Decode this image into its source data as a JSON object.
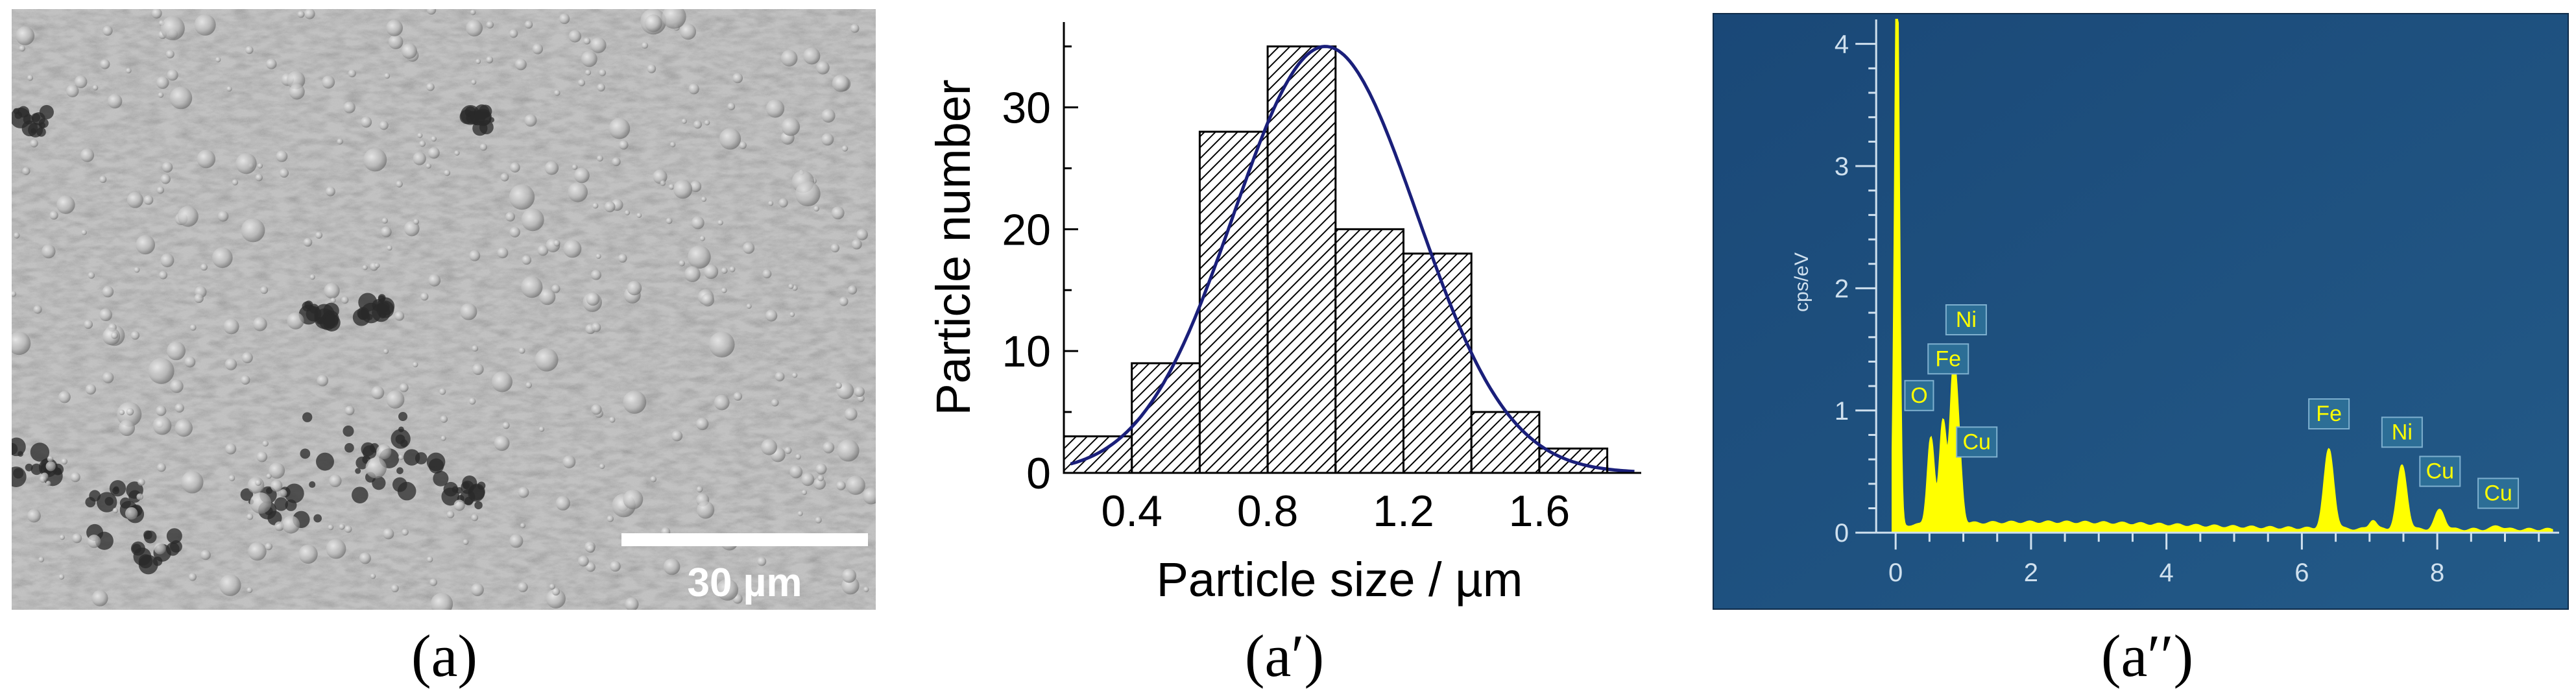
{
  "panels": {
    "a": {
      "caption": "(a)",
      "scale_bar_label": "30 µm"
    },
    "a_prime": {
      "caption": "(a′)"
    },
    "a_double_prime": {
      "caption": "(a′′)"
    }
  },
  "chart_data": [
    {
      "type": "bar",
      "subtype": "histogram",
      "xlabel": "Particle size / µm",
      "ylabel": "Particle number",
      "bin_edges": [
        0.2,
        0.4,
        0.6,
        0.8,
        1.0,
        1.2,
        1.4,
        1.6,
        1.8
      ],
      "values": [
        3,
        9,
        28,
        35,
        20,
        18,
        5,
        2
      ],
      "xlim": [
        0.2,
        1.9
      ],
      "ylim": [
        0,
        37
      ],
      "xticks": [
        "0.4",
        "0.8",
        "1.2",
        "1.6"
      ],
      "xtick_values": [
        0.4,
        0.8,
        1.2,
        1.6
      ],
      "yticks": [
        "0",
        "10",
        "20",
        "30"
      ],
      "ytick_values": [
        0,
        10,
        20,
        30
      ],
      "fit": {
        "type": "gaussian",
        "mean": 0.97,
        "sigma": 0.27,
        "amplitude": 35,
        "color": "#1a1f7a"
      },
      "bar_fill": "hatched",
      "colors": {
        "bar_edge": "#000000",
        "hatch": "#000000"
      }
    },
    {
      "type": "line",
      "subtype": "eds-spectrum",
      "ylabel": "cps/eV",
      "xlim": [
        -0.5,
        9.8
      ],
      "ylim": [
        -0.1,
        4.2
      ],
      "xticks": [
        "0",
        "2",
        "4",
        "6",
        "8"
      ],
      "xtick_values": [
        0,
        2,
        4,
        6,
        8
      ],
      "yticks": [
        "0",
        "1",
        "2",
        "3",
        "4"
      ],
      "ytick_values": [
        0,
        1,
        2,
        3,
        4
      ],
      "peaks": [
        {
          "label": "O",
          "x": 0.52,
          "height": 0.72
        },
        {
          "label": "Fe",
          "x": 0.7,
          "height": 0.85
        },
        {
          "label": "Ni",
          "x": 0.85,
          "height": 1.15
        },
        {
          "label": "Cu",
          "x": 0.93,
          "height": 0.55
        },
        {
          "label": "Fe",
          "x": 6.4,
          "height": 0.65
        },
        {
          "label": "Ni",
          "x": 7.48,
          "height": 0.52
        },
        {
          "label": "Cu",
          "x": 8.04,
          "height": 0.16
        },
        {
          "label": "Cu",
          "x": 8.9,
          "height": 0.03
        }
      ],
      "colors": {
        "background": "#1e4f7c",
        "spectrum": "#ffff00",
        "axis": "#cfe0ee",
        "label_box": "#2c6e96",
        "label_text": "#ffff00"
      }
    }
  ]
}
